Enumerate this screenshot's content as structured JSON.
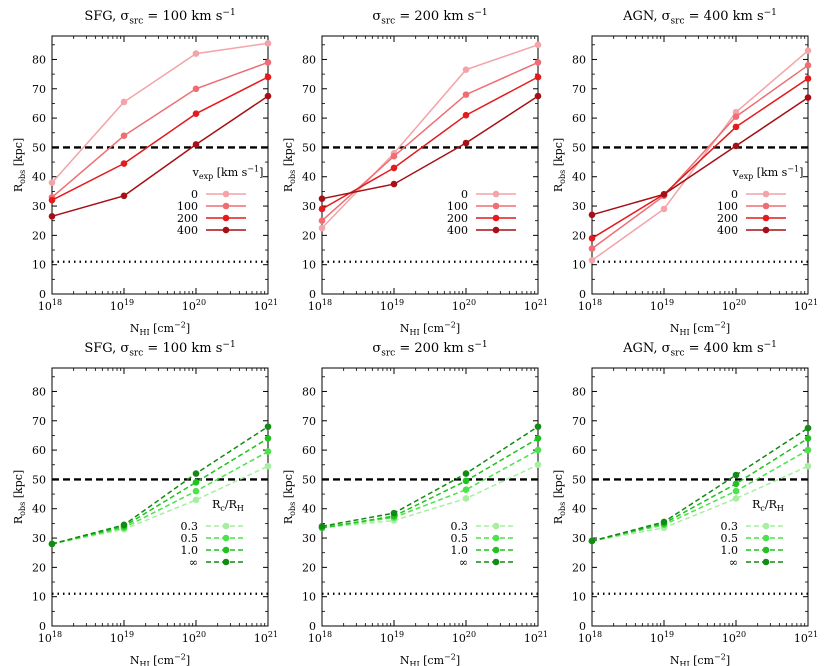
{
  "chart_data": [
    {
      "type": "line",
      "title": "SFG, σ_src = 100 km s^-1",
      "title_parts": {
        "pre": "SFG, σ",
        "sub": "src",
        "mid": " = 100 km s",
        "sup": "−1"
      },
      "xlabel_parts": {
        "pre": "N",
        "sub": "HI",
        "mid": " [cm",
        "sup": "−2",
        "post": "]"
      },
      "ylabel_parts": {
        "pre": "R",
        "sub": "obs",
        "post": " [kpc]"
      },
      "xscale": "log",
      "xlim": [
        1e+18,
        1e+21
      ],
      "ylim": [
        0,
        88
      ],
      "x_ticks": [
        1e+18,
        1e+19,
        1e+20,
        1e+21
      ],
      "x_tick_exps": [
        "18",
        "19",
        "20",
        "21"
      ],
      "y_ticks": [
        0,
        10,
        20,
        30,
        40,
        50,
        60,
        70,
        80
      ],
      "hlines": [
        {
          "y": 50,
          "style": "dashed"
        },
        {
          "y": 11,
          "style": "dotted"
        }
      ],
      "legend": {
        "placement": "lower-right",
        "title_parts": {
          "pre": "v",
          "sub": "exp",
          "post": " [km s",
          "sup": "−1",
          "end": "]"
        }
      },
      "x": [
        1e+18,
        1e+19,
        1e+20,
        1e+21
      ],
      "series": [
        {
          "name": "0",
          "color": "#f4a3a8",
          "dash": false,
          "values": [
            38,
            65.5,
            82,
            85.5
          ]
        },
        {
          "name": "100",
          "color": "#ee6e73",
          "dash": false,
          "values": [
            33,
            54,
            70,
            79
          ]
        },
        {
          "name": "200",
          "color": "#e41a1c",
          "dash": false,
          "values": [
            32,
            44.5,
            61.5,
            74
          ]
        },
        {
          "name": "400",
          "color": "#a50f15",
          "dash": false,
          "values": [
            26.5,
            33.5,
            51,
            67.5
          ]
        }
      ]
    },
    {
      "type": "line",
      "title": "σ_src = 200 km s^-1",
      "title_parts": {
        "pre": "σ",
        "sub": "src",
        "mid": " = 200 km s",
        "sup": "−1"
      },
      "xlabel_parts": {
        "pre": "N",
        "sub": "HI",
        "mid": " [cm",
        "sup": "−2",
        "post": "]"
      },
      "ylabel_parts": {
        "pre": "R",
        "sub": "obs",
        "post": " [kpc]"
      },
      "xscale": "log",
      "xlim": [
        1e+18,
        1e+21
      ],
      "ylim": [
        0,
        88
      ],
      "x_ticks": [
        1e+18,
        1e+19,
        1e+20,
        1e+21
      ],
      "x_tick_exps": [
        "18",
        "19",
        "20",
        "21"
      ],
      "y_ticks": [
        0,
        10,
        20,
        30,
        40,
        50,
        60,
        70,
        80
      ],
      "hlines": [
        {
          "y": 50,
          "style": "dashed"
        },
        {
          "y": 11,
          "style": "dotted"
        }
      ],
      "legend": {
        "placement": "lower-right",
        "title_parts": {
          "pre": "",
          "sub": "",
          "post": "",
          "sup": "",
          "end": ""
        }
      },
      "x": [
        1e+18,
        1e+19,
        1e+20,
        1e+21
      ],
      "series": [
        {
          "name": "0",
          "color": "#f4a3a8",
          "dash": false,
          "values": [
            22.5,
            48,
            76.5,
            85
          ]
        },
        {
          "name": "100",
          "color": "#ee6e73",
          "dash": false,
          "values": [
            25,
            47,
            68,
            79
          ]
        },
        {
          "name": "200",
          "color": "#e41a1c",
          "dash": false,
          "values": [
            29,
            43,
            61,
            74
          ]
        },
        {
          "name": "400",
          "color": "#a50f15",
          "dash": false,
          "values": [
            32.5,
            37.5,
            51.5,
            67.5
          ]
        }
      ]
    },
    {
      "type": "line",
      "title": "AGN, σ_src = 400 km s^-1",
      "title_parts": {
        "pre": "AGN, σ",
        "sub": "src",
        "mid": " = 400 km s",
        "sup": "−1"
      },
      "xlabel_parts": {
        "pre": "N",
        "sub": "HI",
        "mid": " [cm",
        "sup": "−2",
        "post": "]"
      },
      "ylabel_parts": {
        "pre": "R",
        "sub": "obs",
        "post": " [kpc]"
      },
      "xscale": "log",
      "xlim": [
        1e+18,
        1e+21
      ],
      "ylim": [
        0,
        88
      ],
      "x_ticks": [
        1e+18,
        1e+19,
        1e+20,
        1e+21
      ],
      "x_tick_exps": [
        "18",
        "19",
        "20",
        "21"
      ],
      "y_ticks": [
        0,
        10,
        20,
        30,
        40,
        50,
        60,
        70,
        80
      ],
      "hlines": [
        {
          "y": 50,
          "style": "dashed"
        },
        {
          "y": 11,
          "style": "dotted"
        }
      ],
      "legend": {
        "placement": "lower-right",
        "title_parts": {
          "pre": "v",
          "sub": "exp",
          "post": " [km s",
          "sup": "−1",
          "end": "]"
        }
      },
      "x": [
        1e+18,
        1e+19,
        1e+20,
        1e+21
      ],
      "series": [
        {
          "name": "0",
          "color": "#f4a3a8",
          "dash": false,
          "values": [
            11.5,
            29,
            62,
            83
          ]
        },
        {
          "name": "100",
          "color": "#ee6e73",
          "dash": false,
          "values": [
            15.5,
            33.5,
            60.5,
            78
          ]
        },
        {
          "name": "200",
          "color": "#e41a1c",
          "dash": false,
          "values": [
            19,
            34,
            57,
            73.5
          ]
        },
        {
          "name": "400",
          "color": "#a50f15",
          "dash": false,
          "values": [
            27,
            34,
            50.5,
            67
          ]
        }
      ]
    },
    {
      "type": "line",
      "title": "SFG, σ_src = 100 km s^-1",
      "title_parts": {
        "pre": "SFG, σ",
        "sub": "src",
        "mid": " = 100 km s",
        "sup": "−1"
      },
      "xlabel_parts": {
        "pre": "N",
        "sub": "HI",
        "mid": " [cm",
        "sup": "−2",
        "post": "]"
      },
      "ylabel_parts": {
        "pre": "R",
        "sub": "obs",
        "post": " [kpc]"
      },
      "xscale": "log",
      "xlim": [
        1e+18,
        1e+21
      ],
      "ylim": [
        0,
        88
      ],
      "x_ticks": [
        1e+18,
        1e+19,
        1e+20,
        1e+21
      ],
      "x_tick_exps": [
        "18",
        "19",
        "20",
        "21"
      ],
      "y_ticks": [
        0,
        10,
        20,
        30,
        40,
        50,
        60,
        70,
        80
      ],
      "hlines": [
        {
          "y": 50,
          "style": "dashed"
        },
        {
          "y": 11,
          "style": "dotted"
        }
      ],
      "legend": {
        "placement": "lower-right",
        "title_parts": {
          "pre": "R",
          "sub": "c",
          "post": "/R",
          "sup": "",
          "end": "H"
        }
      },
      "x": [
        1e+18,
        1e+19,
        1e+20,
        1e+21
      ],
      "series": [
        {
          "name": "0.3",
          "color": "#a6eea0",
          "dash": true,
          "values": [
            28,
            33,
            43,
            54.5
          ]
        },
        {
          "name": "0.5",
          "color": "#4be34b",
          "dash": true,
          "values": [
            28,
            33.5,
            46,
            59.5
          ]
        },
        {
          "name": "1.0",
          "color": "#1fc21f",
          "dash": true,
          "values": [
            28,
            34,
            49,
            64
          ]
        },
        {
          "name": "∞",
          "color": "#138a13",
          "dash": true,
          "values": [
            28,
            34.5,
            52,
            68
          ]
        }
      ]
    },
    {
      "type": "line",
      "title": "σ_src = 200 km s^-1",
      "title_parts": {
        "pre": "σ",
        "sub": "src",
        "mid": " = 200 km s",
        "sup": "−1"
      },
      "xlabel_parts": {
        "pre": "N",
        "sub": "HI",
        "mid": " [cm",
        "sup": "−2",
        "post": "]"
      },
      "ylabel_parts": {
        "pre": "R",
        "sub": "obs",
        "post": " [kpc]"
      },
      "xscale": "log",
      "xlim": [
        1e+18,
        1e+21
      ],
      "ylim": [
        0,
        88
      ],
      "x_ticks": [
        1e+18,
        1e+19,
        1e+20,
        1e+21
      ],
      "x_tick_exps": [
        "18",
        "19",
        "20",
        "21"
      ],
      "y_ticks": [
        0,
        10,
        20,
        30,
        40,
        50,
        60,
        70,
        80
      ],
      "hlines": [
        {
          "y": 50,
          "style": "dashed"
        },
        {
          "y": 11,
          "style": "dotted"
        }
      ],
      "legend": {
        "placement": "lower-right",
        "title_parts": {
          "pre": "",
          "sub": "",
          "post": "",
          "sup": "",
          "end": ""
        }
      },
      "x": [
        1e+18,
        1e+19,
        1e+20,
        1e+21
      ],
      "series": [
        {
          "name": "0.3",
          "color": "#a6eea0",
          "dash": true,
          "values": [
            33.5,
            36,
            43.5,
            55
          ]
        },
        {
          "name": "0.5",
          "color": "#4be34b",
          "dash": true,
          "values": [
            33.5,
            37,
            46.5,
            60
          ]
        },
        {
          "name": "1.0",
          "color": "#1fc21f",
          "dash": true,
          "values": [
            33.5,
            37.5,
            49.5,
            64
          ]
        },
        {
          "name": "∞",
          "color": "#138a13",
          "dash": true,
          "values": [
            34,
            38.5,
            52,
            68
          ]
        }
      ]
    },
    {
      "type": "line",
      "title": "AGN, σ_src = 400 km s^-1",
      "title_parts": {
        "pre": "AGN, σ",
        "sub": "src",
        "mid": " = 400 km s",
        "sup": "−1"
      },
      "xlabel_parts": {
        "pre": "N",
        "sub": "HI",
        "mid": " [cm",
        "sup": "−2",
        "post": "]"
      },
      "ylabel_parts": {
        "pre": "R",
        "sub": "obs",
        "post": " [kpc]"
      },
      "xscale": "log",
      "xlim": [
        1e+18,
        1e+21
      ],
      "ylim": [
        0,
        88
      ],
      "x_ticks": [
        1e+18,
        1e+19,
        1e+20,
        1e+21
      ],
      "x_tick_exps": [
        "18",
        "19",
        "20",
        "21"
      ],
      "y_ticks": [
        0,
        10,
        20,
        30,
        40,
        50,
        60,
        70,
        80
      ],
      "hlines": [
        {
          "y": 50,
          "style": "dashed"
        },
        {
          "y": 11,
          "style": "dotted"
        }
      ],
      "legend": {
        "placement": "lower-right",
        "title_parts": {
          "pre": "R",
          "sub": "c",
          "post": "/R",
          "sup": "",
          "end": "H"
        }
      },
      "x": [
        1e+18,
        1e+19,
        1e+20,
        1e+21
      ],
      "series": [
        {
          "name": "0.3",
          "color": "#a6eea0",
          "dash": true,
          "values": [
            29,
            33.5,
            43.5,
            54.5
          ]
        },
        {
          "name": "0.5",
          "color": "#4be34b",
          "dash": true,
          "values": [
            29,
            34.5,
            46,
            60
          ]
        },
        {
          "name": "1.0",
          "color": "#1fc21f",
          "dash": true,
          "values": [
            29,
            35,
            48.5,
            64
          ]
        },
        {
          "name": "∞",
          "color": "#138a13",
          "dash": true,
          "values": [
            29,
            35.5,
            51.5,
            67.5
          ]
        }
      ]
    }
  ]
}
